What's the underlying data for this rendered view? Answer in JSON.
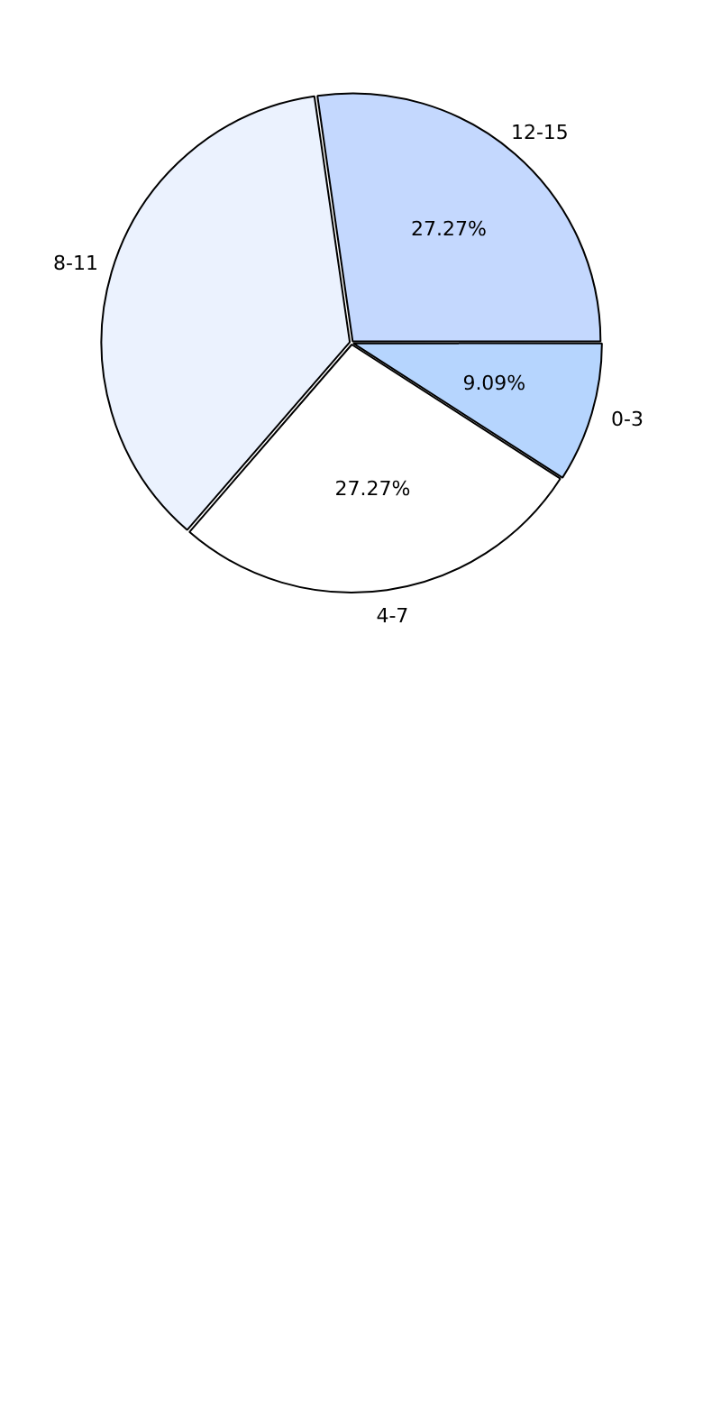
{
  "chart_data": {
    "type": "pie",
    "categories": [
      "0-3",
      "4-7",
      "8-11",
      "12-15"
    ],
    "values": [
      9.09,
      27.27,
      36.36,
      27.27
    ],
    "colors": [
      "#b6d5fe",
      "#ffffff",
      "#ebf2fe",
      "#c4d8fe"
    ],
    "value_labels": [
      "9.09%",
      "27.27%",
      null,
      "27.27%"
    ],
    "legend": false
  }
}
